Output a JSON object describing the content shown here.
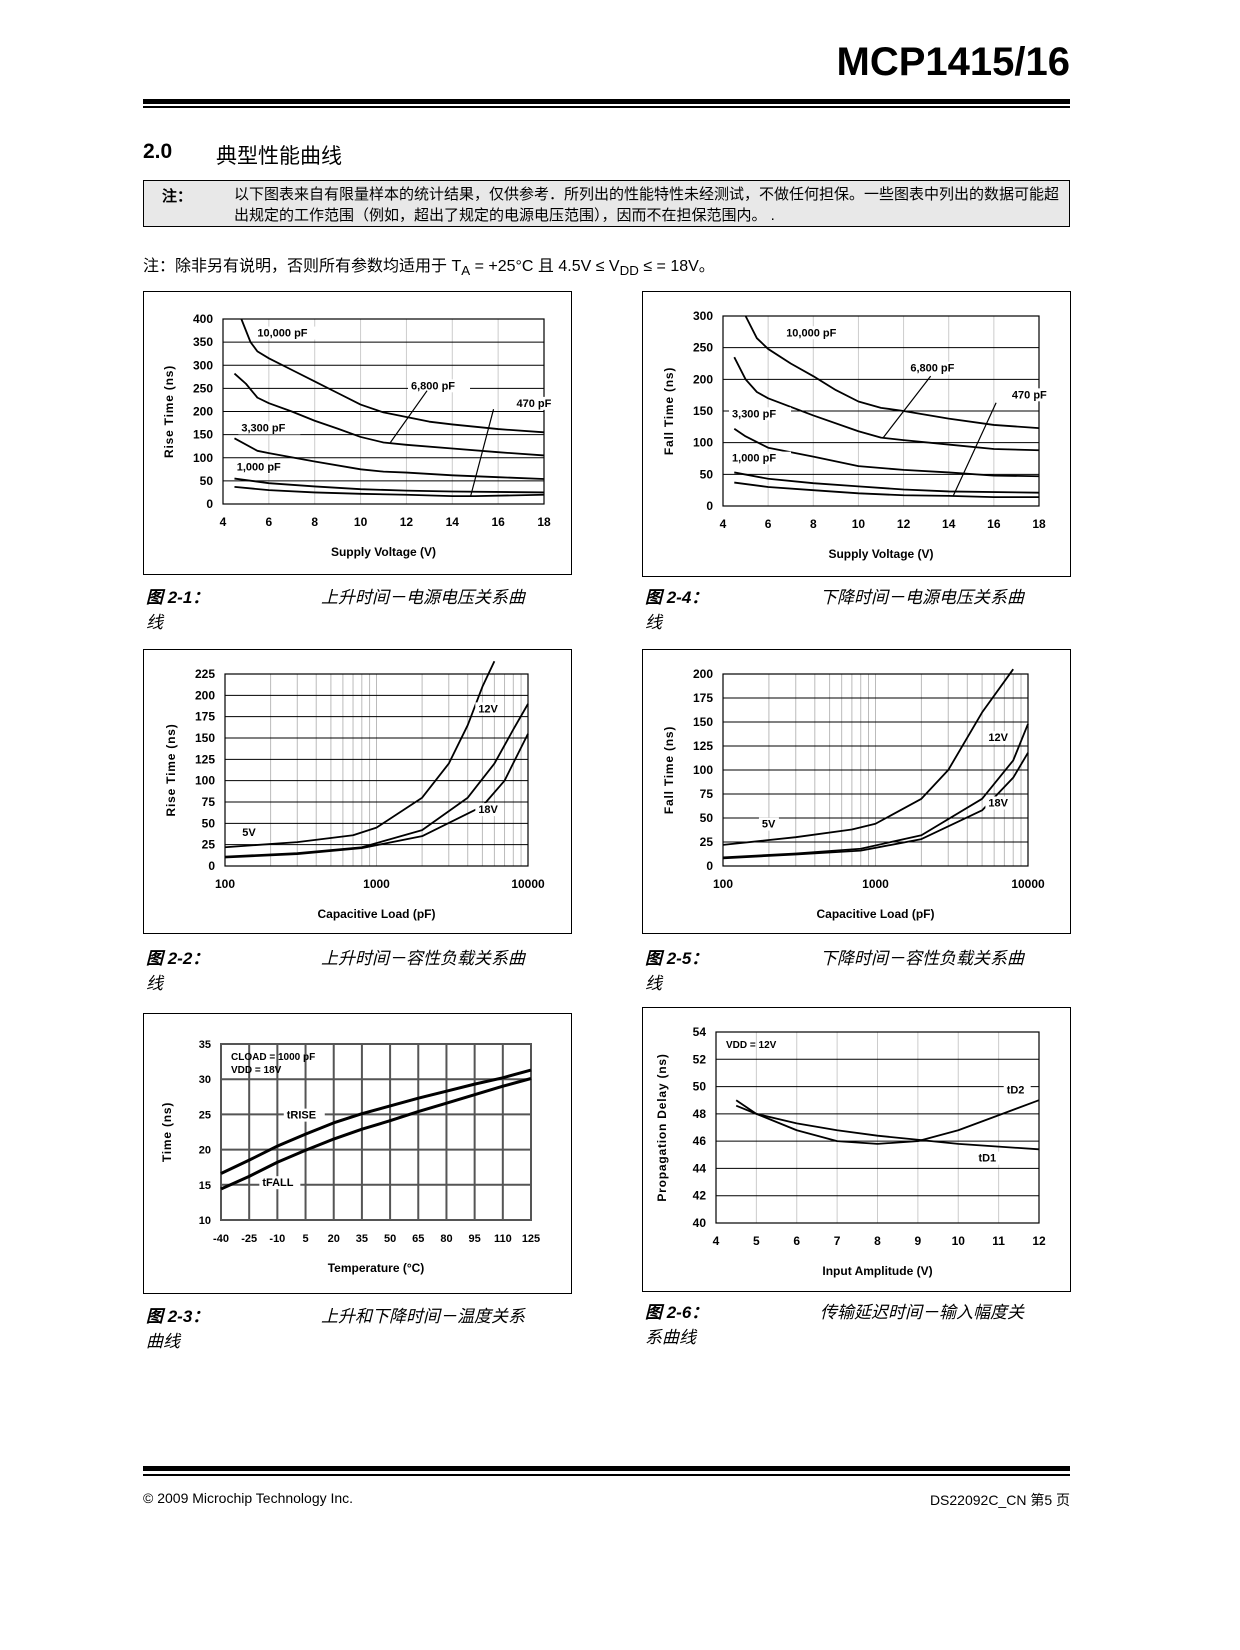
{
  "header": {
    "title": "MCP1415/16"
  },
  "section": {
    "number": "2.0",
    "title": "典型性能曲线"
  },
  "note_box": {
    "label": "注：",
    "text": "以下图表来自有限量样本的统计结果，仅供参考．所列出的性能特性未经测试，不做任何担保。一些图表中列出的数据可能超出规定的工作范围（例如，超出了规定的电源电压范围），因而不在担保范围内。 ."
  },
  "conditions": {
    "prefix": "注：除非另有说明，否则所有参数均适用于 T",
    "sub_a": "A",
    "mid": " = +25°C 且 4.5V ≤ V",
    "sub_dd": "DD",
    "suffix": " ≤ = 18V。"
  },
  "figures": [
    {
      "number": "图 2-1：",
      "caption": "上升时间－电源电压关系曲",
      "caption2": "线"
    },
    {
      "number": "图 2-2：",
      "caption": "上升时间－容性负载关系曲",
      "caption2": "线"
    },
    {
      "number": "图 2-3：",
      "caption": "上升和下降时间－温度关系",
      "caption2": "曲线"
    },
    {
      "number": "图 2-4：",
      "caption": "下降时间－电源电压关系曲",
      "caption2": "线"
    },
    {
      "number": "图 2-5：",
      "caption": "下降时间－容性负载关系曲",
      "caption2": "线"
    },
    {
      "number": "图 2-6：",
      "caption": "传输延迟时间－输入幅度关",
      "caption2": "系曲线"
    }
  ],
  "chart_data": [
    {
      "id": "fig2-1",
      "type": "line",
      "xlabel": "Supply Voltage (V)",
      "ylabel": "Rise Time (ns)",
      "xlim": [
        4,
        18
      ],
      "ylim": [
        0,
        400
      ],
      "xticks": [
        4,
        6,
        8,
        10,
        12,
        14,
        16,
        18
      ],
      "yticks": [
        0,
        50,
        100,
        150,
        200,
        250,
        300,
        350,
        400
      ],
      "grid": true,
      "series": [
        {
          "name": "10,000 pF",
          "points": [
            [
              4.8,
              400
            ],
            [
              5.2,
              350
            ],
            [
              5.5,
              330
            ],
            [
              6,
              315
            ],
            [
              7,
              290
            ],
            [
              8,
              265
            ],
            [
              9,
              240
            ],
            [
              10,
              215
            ],
            [
              11,
              198
            ],
            [
              12,
              188
            ],
            [
              13,
              178
            ],
            [
              14,
              172
            ],
            [
              16,
              162
            ],
            [
              18,
              155
            ]
          ]
        },
        {
          "name": "6,800 pF",
          "points": [
            [
              4.5,
              282
            ],
            [
              5,
              260
            ],
            [
              5.5,
              230
            ],
            [
              6,
              218
            ],
            [
              7,
              200
            ],
            [
              8,
              180
            ],
            [
              9,
              163
            ],
            [
              10,
              145
            ],
            [
              11,
              133
            ],
            [
              12,
              128
            ],
            [
              14,
              120
            ],
            [
              16,
              112
            ],
            [
              18,
              105
            ]
          ]
        },
        {
          "name": "3,300 pF",
          "points": [
            [
              4.5,
              142
            ],
            [
              5.5,
              115
            ],
            [
              6,
              110
            ],
            [
              8,
              92
            ],
            [
              10,
              75
            ],
            [
              11,
              70
            ],
            [
              12,
              68
            ],
            [
              14,
              62
            ],
            [
              16,
              58
            ],
            [
              18,
              54
            ]
          ]
        },
        {
          "name": "1,000 pF",
          "points": [
            [
              4.5,
              55
            ],
            [
              6,
              45
            ],
            [
              8,
              38
            ],
            [
              10,
              32
            ],
            [
              12,
              29
            ],
            [
              14,
              27
            ],
            [
              18,
              25
            ]
          ]
        },
        {
          "name": "470 pF",
          "points": [
            [
              4.5,
              37
            ],
            [
              6,
              30
            ],
            [
              8,
              25
            ],
            [
              10,
              22
            ],
            [
              12,
              20
            ],
            [
              14,
              17
            ],
            [
              15,
              17
            ],
            [
              18,
              20
            ]
          ]
        }
      ]
    },
    {
      "id": "fig2-2",
      "type": "line",
      "xscale": "log",
      "xlabel": "Capacitive Load (pF)",
      "ylabel": "Rise Time (ns)",
      "xlim": [
        100,
        10000
      ],
      "ylim": [
        0,
        225
      ],
      "xticks": [
        100,
        1000,
        10000
      ],
      "yticks": [
        0,
        25,
        50,
        75,
        100,
        125,
        150,
        175,
        200,
        225
      ],
      "grid": true,
      "series": [
        {
          "name": "5V",
          "points": [
            [
              100,
              22
            ],
            [
              300,
              28
            ],
            [
              700,
              36
            ],
            [
              1000,
              45
            ],
            [
              2000,
              80
            ],
            [
              3000,
              120
            ],
            [
              4000,
              165
            ],
            [
              5000,
              210
            ],
            [
              6000,
              240
            ]
          ]
        },
        {
          "name": "12V",
          "points": [
            [
              100,
              11
            ],
            [
              300,
              15
            ],
            [
              800,
              22
            ],
            [
              2000,
              42
            ],
            [
              4000,
              80
            ],
            [
              6000,
              120
            ],
            [
              8000,
              160
            ],
            [
              10000,
              190
            ]
          ]
        },
        {
          "name": "18V",
          "points": [
            [
              100,
              10
            ],
            [
              300,
              14
            ],
            [
              800,
              21
            ],
            [
              2000,
              35
            ],
            [
              5000,
              70
            ],
            [
              7000,
              100
            ],
            [
              10000,
              155
            ]
          ]
        }
      ]
    },
    {
      "id": "fig2-3",
      "type": "line",
      "xlabel": "Temperature (°C)",
      "ylabel": "Time (ns)",
      "xlim": [
        -40,
        125
      ],
      "ylim": [
        10,
        35
      ],
      "xticks": [
        -40,
        -25,
        -10,
        5,
        20,
        35,
        50,
        65,
        80,
        95,
        110,
        125
      ],
      "yticks": [
        10,
        15,
        20,
        25,
        30,
        35
      ],
      "grid": true,
      "annotation": [
        "CLOAD = 1000 pF",
        "VDD = 18V"
      ],
      "series": [
        {
          "name": "tRISE",
          "points": [
            [
              -40,
              16.6
            ],
            [
              -25,
              18.5
            ],
            [
              -10,
              20.5
            ],
            [
              5,
              22.2
            ],
            [
              20,
              23.8
            ],
            [
              35,
              25.1
            ],
            [
              50,
              26.2
            ],
            [
              65,
              27.3
            ],
            [
              80,
              28.3
            ],
            [
              95,
              29.3
            ],
            [
              110,
              30.2
            ],
            [
              125,
              31.3
            ]
          ]
        },
        {
          "name": "tFALL",
          "points": [
            [
              -40,
              14.4
            ],
            [
              -25,
              16.2
            ],
            [
              -10,
              18.2
            ],
            [
              5,
              19.9
            ],
            [
              20,
              21.5
            ],
            [
              35,
              22.9
            ],
            [
              50,
              24.1
            ],
            [
              65,
              25.4
            ],
            [
              80,
              26.6
            ],
            [
              95,
              27.8
            ],
            [
              110,
              29
            ],
            [
              125,
              30.1
            ]
          ]
        }
      ]
    },
    {
      "id": "fig2-4",
      "type": "line",
      "xlabel": "Supply Voltage (V)",
      "ylabel": "Fall Time (ns)",
      "xlim": [
        4,
        18
      ],
      "ylim": [
        0,
        300
      ],
      "xticks": [
        4,
        6,
        8,
        10,
        12,
        14,
        16,
        18
      ],
      "yticks": [
        0,
        50,
        100,
        150,
        200,
        250,
        300
      ],
      "grid": true,
      "series": [
        {
          "name": "10,000 pF",
          "points": [
            [
              5,
              300
            ],
            [
              5.5,
              265
            ],
            [
              6,
              248
            ],
            [
              7,
              225
            ],
            [
              8,
              205
            ],
            [
              9,
              183
            ],
            [
              10,
              165
            ],
            [
              11,
              155
            ],
            [
              12,
              150
            ],
            [
              14,
              138
            ],
            [
              16,
              128
            ],
            [
              18,
              123
            ]
          ]
        },
        {
          "name": "6,800 pF",
          "points": [
            [
              4.5,
              235
            ],
            [
              5,
              200
            ],
            [
              5.5,
              180
            ],
            [
              6,
              170
            ],
            [
              8,
              143
            ],
            [
              10,
              118
            ],
            [
              11,
              108
            ],
            [
              12,
              104
            ],
            [
              14,
              97
            ],
            [
              16,
              90
            ],
            [
              18,
              88
            ]
          ]
        },
        {
          "name": "3,300 pF",
          "points": [
            [
              4.5,
              122
            ],
            [
              5,
              110
            ],
            [
              6,
              92
            ],
            [
              8,
              78
            ],
            [
              10,
              63
            ],
            [
              12,
              57
            ],
            [
              14,
              53
            ],
            [
              16,
              48
            ],
            [
              18,
              47
            ]
          ]
        },
        {
          "name": "1,000 pF",
          "points": [
            [
              4.5,
              53
            ],
            [
              6,
              43
            ],
            [
              8,
              36
            ],
            [
              10,
              31
            ],
            [
              12,
              26
            ],
            [
              14,
              23
            ],
            [
              18,
              21
            ]
          ]
        },
        {
          "name": "470 pF",
          "points": [
            [
              4.5,
              37
            ],
            [
              6,
              30
            ],
            [
              8,
              25
            ],
            [
              10,
              20
            ],
            [
              12,
              17
            ],
            [
              14,
              16
            ],
            [
              16,
              14
            ],
            [
              18,
              14
            ]
          ]
        }
      ]
    },
    {
      "id": "fig2-5",
      "type": "line",
      "xscale": "log",
      "xlabel": "Capacitive Load (pF)",
      "ylabel": "Fall Time (ns)",
      "xlim": [
        100,
        10000
      ],
      "ylim": [
        0,
        200
      ],
      "xticks": [
        100,
        1000,
        10000
      ],
      "yticks": [
        0,
        25,
        50,
        75,
        100,
        125,
        150,
        175,
        200
      ],
      "grid": true,
      "series": [
        {
          "name": "5V",
          "points": [
            [
              100,
              22
            ],
            [
              300,
              30
            ],
            [
              700,
              38
            ],
            [
              1000,
              44
            ],
            [
              2000,
              70
            ],
            [
              3000,
              100
            ],
            [
              5000,
              160
            ],
            [
              8000,
              205
            ]
          ]
        },
        {
          "name": "12V",
          "points": [
            [
              100,
              9
            ],
            [
              300,
              13
            ],
            [
              800,
              18
            ],
            [
              2000,
              32
            ],
            [
              5000,
              70
            ],
            [
              8000,
              110
            ],
            [
              10000,
              148
            ]
          ]
        },
        {
          "name": "18V",
          "points": [
            [
              100,
              8
            ],
            [
              300,
              12
            ],
            [
              800,
              16
            ],
            [
              2000,
              28
            ],
            [
              5000,
              58
            ],
            [
              8000,
              92
            ],
            [
              10000,
              118
            ]
          ]
        }
      ]
    },
    {
      "id": "fig2-6",
      "type": "line",
      "xlabel": "Input Amplitude (V)",
      "ylabel": "Propagation Delay (ns)",
      "xlim": [
        4,
        12
      ],
      "ylim": [
        40,
        54
      ],
      "xticks": [
        4,
        5,
        6,
        7,
        8,
        9,
        10,
        11,
        12
      ],
      "yticks": [
        40,
        42,
        44,
        46,
        48,
        50,
        52,
        54
      ],
      "grid": true,
      "annotation": [
        "VDD = 12V"
      ],
      "series": [
        {
          "name": "tD2",
          "points": [
            [
              4.5,
              49
            ],
            [
              5,
              48
            ],
            [
              6,
              46.8
            ],
            [
              7,
              46
            ],
            [
              8,
              45.8
            ],
            [
              9,
              46
            ],
            [
              10,
              46.8
            ],
            [
              11,
              47.9
            ],
            [
              12,
              49
            ]
          ]
        },
        {
          "name": "tD1",
          "points": [
            [
              4.5,
              48.6
            ],
            [
              5,
              48
            ],
            [
              6,
              47.3
            ],
            [
              7,
              46.8
            ],
            [
              8,
              46.4
            ],
            [
              9,
              46.1
            ],
            [
              10,
              45.8
            ],
            [
              11,
              45.6
            ],
            [
              12,
              45.4
            ]
          ]
        }
      ]
    }
  ],
  "footer": {
    "copyright": "© 2009 Microchip Technology Inc.",
    "doc": "DS22092C_CN 第5 页"
  }
}
